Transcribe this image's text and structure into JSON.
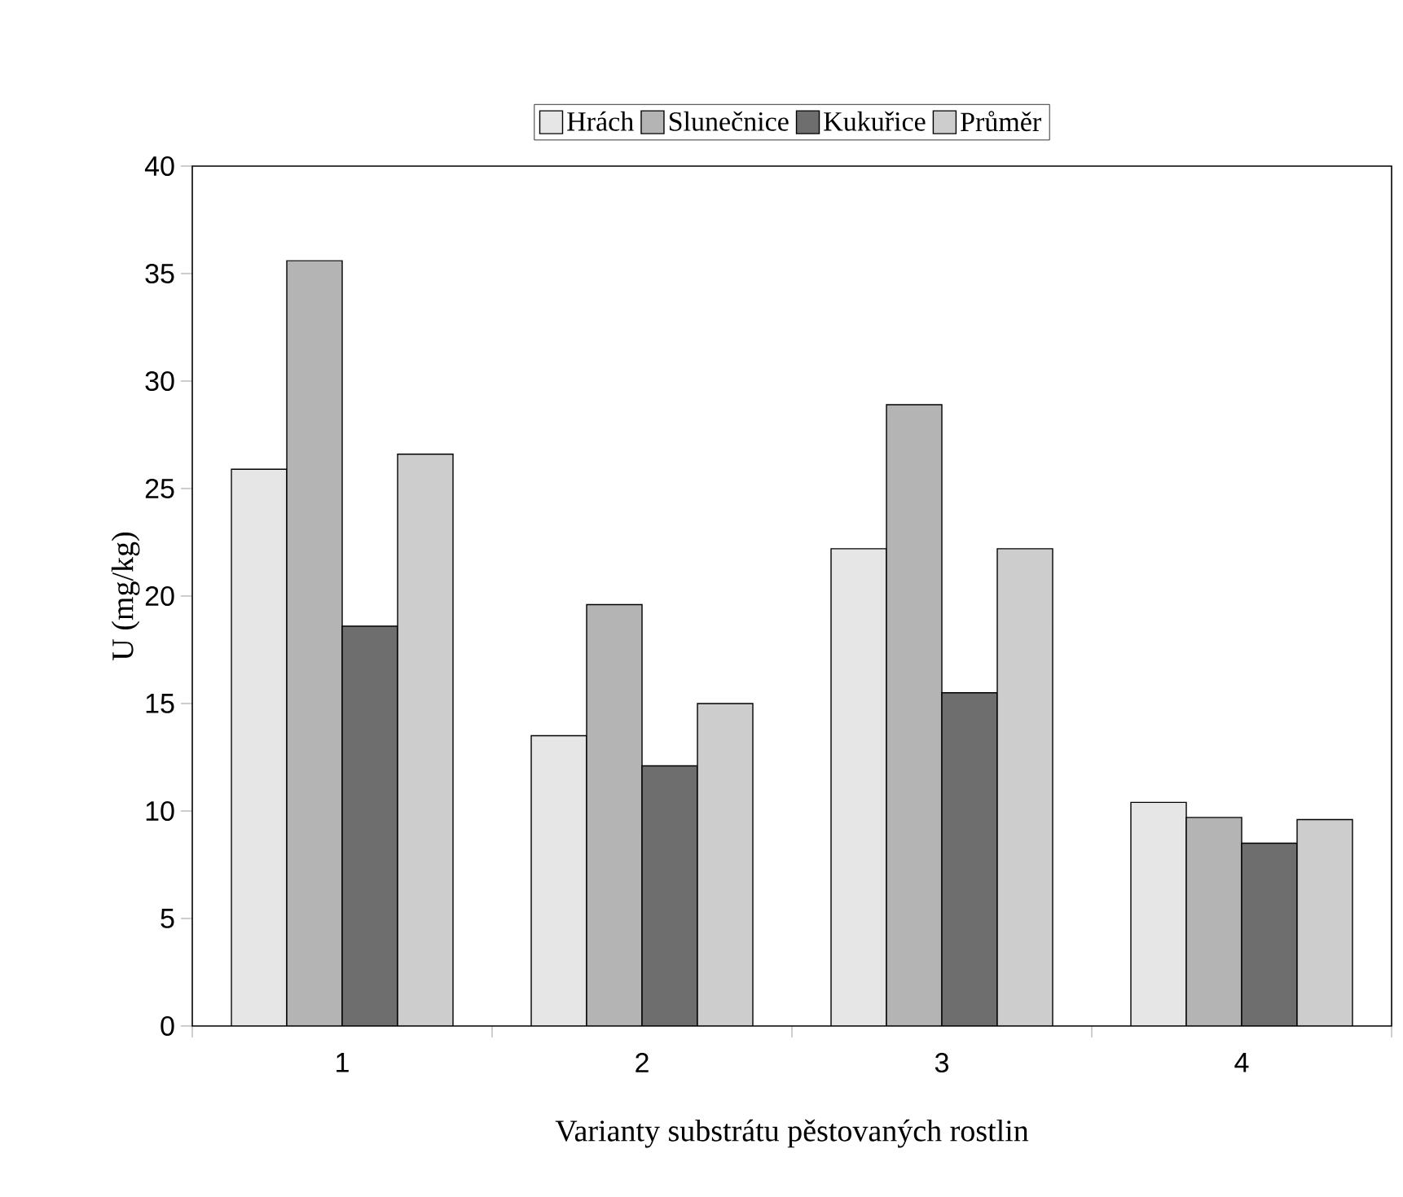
{
  "chart_data": {
    "type": "bar",
    "xlabel": "Varianty substrátu pěstovaných rostlin",
    "ylabel": "U (mg/kg)",
    "categories": [
      "1",
      "2",
      "3",
      "4"
    ],
    "series": [
      {
        "name": "Hrách",
        "color": "#e6e6e6",
        "values": [
          25.9,
          13.5,
          22.2,
          10.4
        ]
      },
      {
        "name": "Slunečnice",
        "color": "#b4b4b4",
        "values": [
          35.6,
          19.6,
          28.9,
          9.7
        ]
      },
      {
        "name": "Kukuřice",
        "color": "#6e6e6e",
        "values": [
          18.6,
          12.1,
          15.5,
          8.5
        ]
      },
      {
        "name": "Průměr",
        "color": "#cdcdcd",
        "values": [
          26.6,
          15.0,
          22.2,
          9.6
        ]
      }
    ],
    "ylim": [
      0,
      40
    ],
    "yticks": [
      0,
      5,
      10,
      15,
      20,
      25,
      30,
      35,
      40
    ],
    "grid": false,
    "legend": "top"
  }
}
